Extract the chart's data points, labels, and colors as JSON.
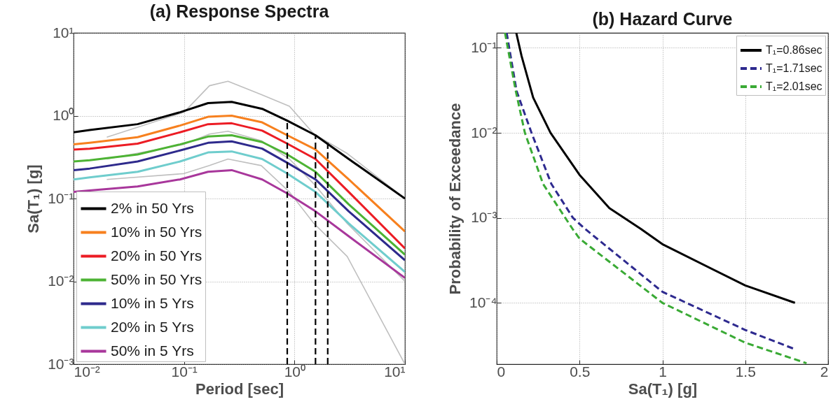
{
  "chart_data": [
    {
      "type": "line",
      "title": "(a) Response Spectra",
      "xlabel": "Period [sec]",
      "ylabel": "Sa(T₁) [g]",
      "log": "xy",
      "grid": true,
      "legend": "bottom left",
      "marker": "none",
      "xlim": [
        0.01,
        10
      ],
      "ylim": [
        0.001,
        10
      ],
      "xticks": [
        {
          "value": 0.01,
          "label": "10⁻²"
        },
        {
          "value": 0.1,
          "label": "10⁻¹"
        },
        {
          "value": 1,
          "label": "10⁰"
        },
        {
          "value": 10,
          "label": "10¹"
        }
      ],
      "yticks": [
        {
          "value": 0.001,
          "label": "10⁻³"
        },
        {
          "value": 0.01,
          "label": "10⁻²"
        },
        {
          "value": 0.1,
          "label": "10⁻¹"
        },
        {
          "value": 1,
          "label": "10⁰"
        },
        {
          "value": 10,
          "label": "10¹"
        }
      ],
      "series": [
        {
          "color": "#bfbfbf",
          "line_style": "solid",
          "x": [
            0.02,
            0.1,
            0.17,
            0.25,
            0.5,
            0.9,
            1.5,
            3,
            10
          ],
          "values": [
            0.55,
            1.1,
            2.3,
            2.6,
            1.8,
            1.3,
            0.6,
            0.35,
            0.1
          ]
        },
        {
          "color": "#bfbfbf",
          "line_style": "solid",
          "x": [
            0.02,
            0.1,
            0.17,
            0.25,
            0.5,
            0.9,
            1.5,
            3,
            10
          ],
          "values": [
            0.3,
            0.45,
            0.6,
            0.65,
            0.5,
            0.3,
            0.15,
            0.05,
            0.01
          ]
        },
        {
          "color": "#bfbfbf",
          "line_style": "solid",
          "x": [
            0.02,
            0.1,
            0.17,
            0.25,
            0.5,
            0.9,
            1.5,
            3,
            10
          ],
          "values": [
            0.17,
            0.2,
            0.25,
            0.3,
            0.25,
            0.12,
            0.05,
            0.02,
            0.001
          ]
        },
        {
          "name": "2% in 50 Yrs",
          "color": "#000000",
          "line_style": "solid",
          "x": [
            0.01,
            0.014,
            0.038,
            0.092,
            0.165,
            0.27,
            0.51,
            0.86,
            1.55,
            3.1,
            10
          ],
          "values": [
            0.63,
            0.67,
            0.79,
            1.1,
            1.42,
            1.47,
            1.21,
            0.87,
            0.58,
            0.3,
            0.1
          ]
        },
        {
          "name": "10% in 50 Yrs",
          "color": "#f7801e",
          "line_style": "solid",
          "x": [
            0.01,
            0.014,
            0.038,
            0.092,
            0.165,
            0.27,
            0.51,
            0.86,
            1.55,
            3.1,
            10
          ],
          "values": [
            0.45,
            0.47,
            0.55,
            0.76,
            0.97,
            1.0,
            0.83,
            0.58,
            0.39,
            0.17,
            0.04
          ]
        },
        {
          "name": "20% in 50 Yrs",
          "color": "#ec1c24",
          "line_style": "solid",
          "x": [
            0.01,
            0.014,
            0.038,
            0.092,
            0.165,
            0.27,
            0.51,
            0.86,
            1.55,
            3.1,
            10
          ],
          "values": [
            0.39,
            0.4,
            0.46,
            0.63,
            0.79,
            0.81,
            0.66,
            0.46,
            0.3,
            0.12,
            0.025
          ]
        },
        {
          "name": "50% in 50 Yrs",
          "color": "#4db334",
          "line_style": "solid",
          "x": [
            0.01,
            0.014,
            0.038,
            0.092,
            0.165,
            0.27,
            0.51,
            0.86,
            1.55,
            3.1,
            10
          ],
          "values": [
            0.28,
            0.29,
            0.34,
            0.45,
            0.56,
            0.58,
            0.48,
            0.34,
            0.21,
            0.085,
            0.021
          ]
        },
        {
          "name": "10% in 5 Yrs",
          "color": "#2e2a8c",
          "line_style": "solid",
          "x": [
            0.01,
            0.014,
            0.038,
            0.092,
            0.165,
            0.27,
            0.51,
            0.86,
            1.55,
            3.1,
            10
          ],
          "values": [
            0.22,
            0.23,
            0.28,
            0.38,
            0.47,
            0.49,
            0.4,
            0.27,
            0.17,
            0.07,
            0.018
          ]
        },
        {
          "name": "20% in 5 Yrs",
          "color": "#6fcdcd",
          "line_style": "solid",
          "x": [
            0.01,
            0.014,
            0.038,
            0.092,
            0.165,
            0.27,
            0.51,
            0.86,
            1.55,
            3.1,
            10
          ],
          "values": [
            0.17,
            0.18,
            0.21,
            0.28,
            0.36,
            0.37,
            0.3,
            0.2,
            0.12,
            0.05,
            0.013
          ]
        },
        {
          "name": "50% in 5 Yrs",
          "color": "#a8379b",
          "line_style": "solid",
          "x": [
            0.01,
            0.014,
            0.038,
            0.092,
            0.165,
            0.27,
            0.51,
            0.86,
            1.55,
            3.1,
            10
          ],
          "values": [
            0.12,
            0.125,
            0.14,
            0.17,
            0.21,
            0.22,
            0.17,
            0.115,
            0.07,
            0.035,
            0.011
          ]
        },
        {
          "color": "#000000",
          "line_style": "dashed",
          "x": [
            0.86,
            0.86
          ],
          "values": [
            0.001,
            0.87
          ]
        },
        {
          "color": "#000000",
          "line_style": "dashed",
          "x": [
            1.55,
            1.55
          ],
          "values": [
            0.001,
            0.58
          ]
        },
        {
          "color": "#000000",
          "line_style": "dashed",
          "x": [
            2.0,
            2.0
          ],
          "values": [
            0.001,
            0.48
          ]
        }
      ]
    },
    {
      "type": "line",
      "title": "(b) Hazard Curve",
      "xlabel": "Sa(T₁) [g]",
      "ylabel": "Probability of Exceedance",
      "log": "y",
      "grid": true,
      "legend": "top right",
      "marker": "none",
      "xlim": [
        0,
        2
      ],
      "ylim": [
        1.9e-05,
        0.15
      ],
      "xticks": [
        {
          "value": 0,
          "label": "0"
        },
        0.5,
        {
          "value": 1,
          "label": "1"
        },
        1.5,
        {
          "value": 2,
          "label": "2"
        }
      ],
      "yticks": [
        {
          "value": 0.0001,
          "label": "10⁻⁴"
        },
        {
          "value": 0.001,
          "label": "10⁻³"
        },
        {
          "value": 0.01,
          "label": "10⁻²"
        },
        {
          "value": 0.1,
          "label": "10⁻¹"
        }
      ],
      "series": [
        {
          "name": "T₁=0.86sec",
          "color": "#000000",
          "line_style": "solid",
          "x": [
            0.118,
            0.15,
            0.22,
            0.325,
            0.5,
            0.68,
            0.87,
            1.0,
            1.5,
            1.8
          ],
          "values": [
            0.15,
            0.08,
            0.026,
            0.01,
            0.0032,
            0.0013,
            0.00074,
            0.00049,
            0.00016,
            0.0001
          ]
        },
        {
          "name": "T₁=1.71sec",
          "color": "#2e2a8f",
          "line_style": "dashed",
          "x": [
            0.06,
            0.12,
            0.21,
            0.33,
            0.46,
            0.53,
            1.0,
            1.5,
            1.79
          ],
          "values": [
            0.15,
            0.031,
            0.01,
            0.0025,
            0.001,
            0.00075,
            0.000135,
            4.8e-05,
            2.9e-05
          ]
        },
        {
          "name": "T₁=2.01sec",
          "color": "#3aaa35",
          "line_style": "dashed",
          "x": [
            0.05,
            0.115,
            0.17,
            0.28,
            0.46,
            0.5,
            1.0,
            1.5,
            1.87
          ],
          "values": [
            0.15,
            0.031,
            0.01,
            0.0025,
            0.00073,
            0.00057,
            0.0001,
            3.4e-05,
            1.95e-05
          ]
        }
      ]
    }
  ]
}
